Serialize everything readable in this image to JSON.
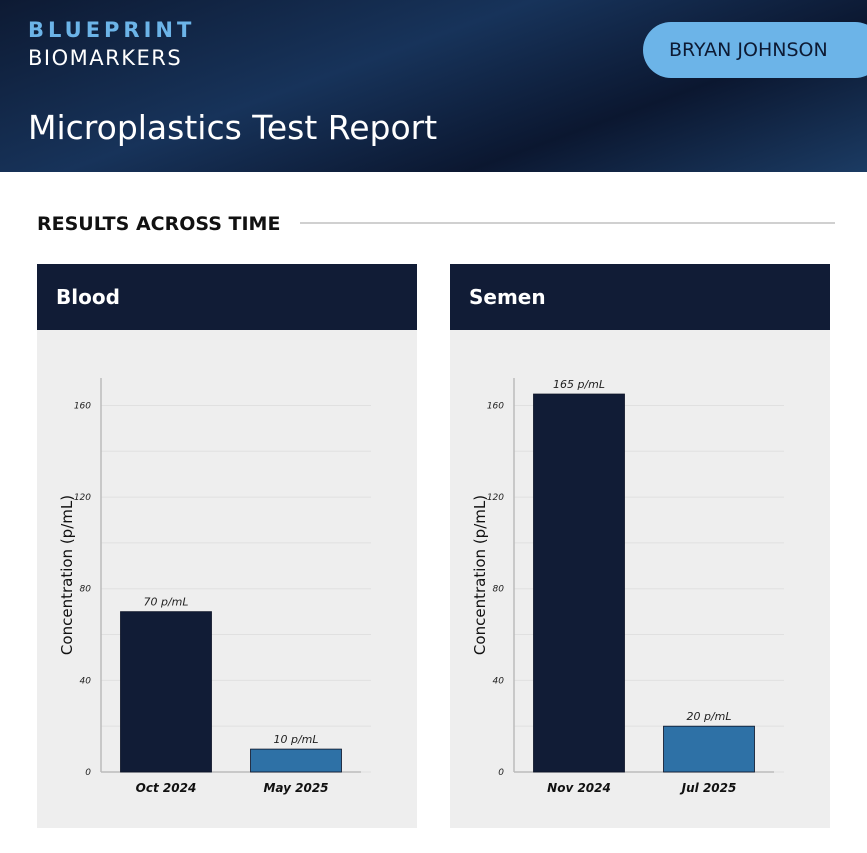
{
  "header": {
    "brand_top": "BLUEPRINT",
    "brand_bottom": "BIOMARKERS",
    "title": "Microplastics Test Report",
    "patient": "BRYAN JOHNSON"
  },
  "section": {
    "title": "RESULTS ACROSS TIME"
  },
  "chart_data": [
    {
      "type": "bar",
      "title": "Blood",
      "y_label": "Concentration (p/mL)",
      "categories": [
        "Oct 2024",
        "May 2025"
      ],
      "values": [
        70,
        10
      ],
      "value_labels": [
        "70 p/mL",
        "10 p/mL"
      ],
      "colors": [
        "#111c36",
        "#2e71a6"
      ],
      "ylim": [
        0,
        172
      ],
      "yticks": [
        0,
        40,
        80,
        120,
        160
      ],
      "minor_yticks": [
        20,
        60,
        100,
        140
      ],
      "grid": true
    },
    {
      "type": "bar",
      "title": "Semen",
      "y_label": "Concentration (p/mL)",
      "categories": [
        "Nov 2024",
        "Jul 2025"
      ],
      "values": [
        165,
        20
      ],
      "value_labels": [
        "165 p/mL",
        "20 p/mL"
      ],
      "colors": [
        "#111c36",
        "#2e71a6"
      ],
      "ylim": [
        0,
        172
      ],
      "yticks": [
        0,
        40,
        80,
        120,
        160
      ],
      "minor_yticks": [
        20,
        60,
        100,
        140
      ],
      "grid": true
    }
  ]
}
